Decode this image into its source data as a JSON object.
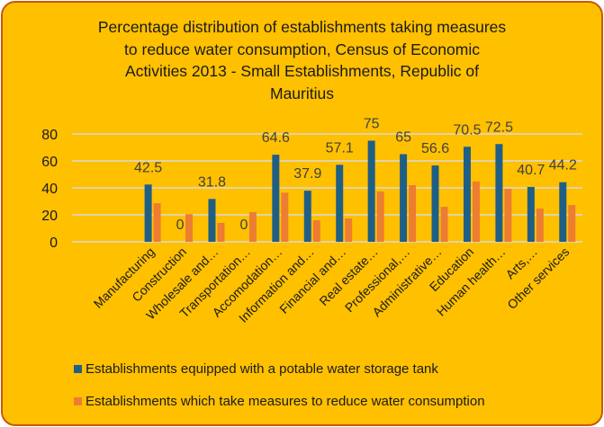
{
  "chart_data": {
    "type": "bar",
    "title_lines": [
      "Percentage distribution of establishments taking measures",
      "to reduce water consumption, Census of Economic",
      "Activities 2013 - Small Establishments, Republic of",
      "Mauritius"
    ],
    "title": "Percentage distribution of establishments taking measures to reduce water consumption, Census of Economic Activities 2013 - Small Establishments, Republic of Mauritius",
    "xlabel": "",
    "ylabel": "",
    "ylim": [
      0,
      80
    ],
    "yticks": [
      0,
      20,
      40,
      60,
      80
    ],
    "grid": true,
    "legend_position": "bottom-left",
    "categories": [
      "",
      "",
      "Manufacturing",
      "Construction",
      "Wholesale and…",
      "Transportation…",
      "Accomodation…",
      "Information and…",
      "Financial and…",
      "Real estate…",
      "Professional,…",
      "Administrative…",
      "Education",
      "Human health…",
      "Arts,…",
      "Other services"
    ],
    "series": [
      {
        "name": "Establishments equipped with a potable water storage tank",
        "color": "#1F5F86",
        "values": [
          null,
          null,
          42.5,
          0,
          31.8,
          0,
          64.6,
          37.9,
          57.1,
          75,
          65,
          56.6,
          70.5,
          72.5,
          40.7,
          44.2
        ],
        "data_labels": [
          "",
          "",
          "42.5",
          "0",
          "31.8",
          "0",
          "64.6",
          "37.9",
          "57.1",
          "75",
          "65",
          "56.6",
          "70.5",
          "72.5",
          "40.7",
          "44.2"
        ]
      },
      {
        "name": "Establishments which take measures to reduce water consumption",
        "color": "#ED7D31",
        "values": [
          null,
          null,
          28.6,
          20.5,
          14,
          22,
          36.5,
          16,
          17.3,
          37.3,
          42,
          26,
          44.7,
          39.3,
          24.7,
          27.3
        ]
      }
    ]
  },
  "colors": {
    "background": "#FFC000",
    "border": "#C55A11",
    "gridline": "#D9D9D9",
    "data_label": "#404040"
  }
}
